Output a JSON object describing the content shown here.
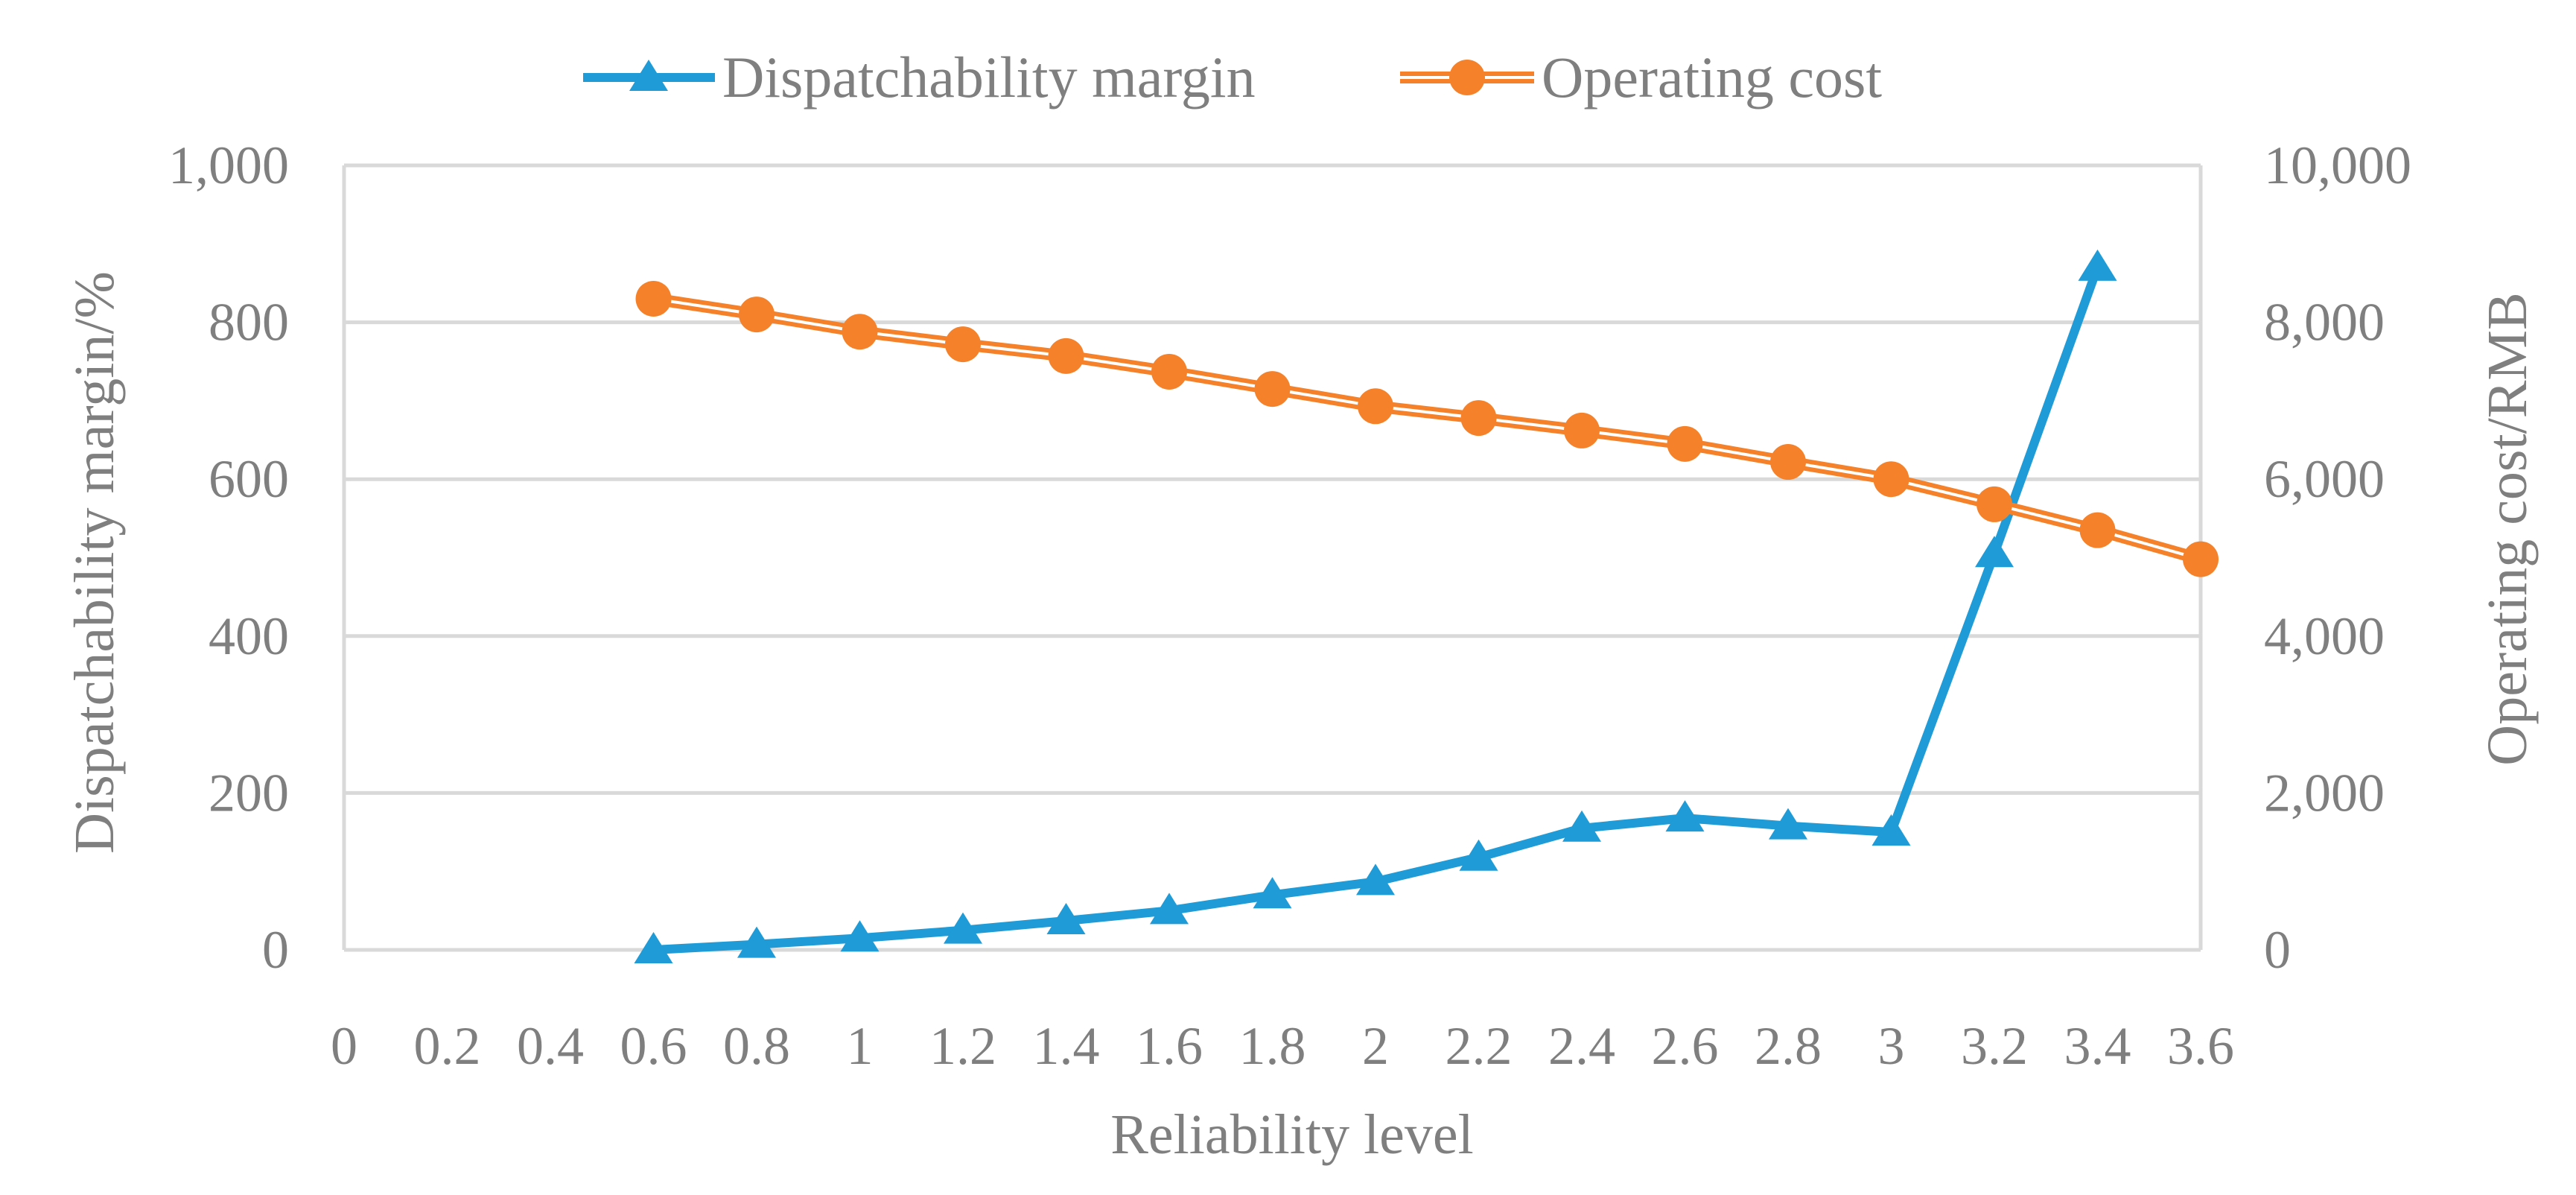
{
  "chart_data": {
    "type": "line",
    "title": "",
    "xlabel": "Reliability level",
    "ylabel_left": "Dispatchability margin/%",
    "ylabel_right": "Operating cost/RMB",
    "x_ticks": [
      "0",
      "0.2",
      "0.4",
      "0.6",
      "0.8",
      "1",
      "1.2",
      "1.4",
      "1.6",
      "1.8",
      "2",
      "2.2",
      "2.4",
      "2.6",
      "2.8",
      "3",
      "3.2",
      "3.4",
      "3.6"
    ],
    "xlim": [
      0,
      3.6
    ],
    "ylim_left": [
      0,
      1000
    ],
    "ylim_right": [
      0,
      10000
    ],
    "left_ticks": [
      0,
      200,
      400,
      600,
      800,
      1000
    ],
    "right_ticks": [
      0,
      2000,
      4000,
      6000,
      8000,
      10000
    ],
    "left_tick_labels": [
      "0",
      "200",
      "400",
      "600",
      "800",
      "1,000"
    ],
    "right_tick_labels": [
      "0",
      "2,000",
      "4,000",
      "6,000",
      "8,000",
      "10,000"
    ],
    "grid": true,
    "legend_position": "top-center",
    "series": [
      {
        "name": "Dispatchability margin",
        "axis": "left",
        "marker": "triangle",
        "color": "#1f9bd7",
        "x": [
          0.6,
          0.8,
          1.0,
          1.2,
          1.4,
          1.6,
          1.8,
          2.0,
          2.2,
          2.4,
          2.6,
          2.8,
          3.0,
          3.2,
          3.4
        ],
        "values": [
          0,
          7,
          15,
          25,
          37,
          50,
          70,
          87,
          118,
          155,
          168,
          158,
          150,
          505,
          870
        ]
      },
      {
        "name": "Operating cost",
        "axis": "right",
        "marker": "circle",
        "color": "#f5822a",
        "x": [
          0.6,
          0.8,
          1.0,
          1.2,
          1.4,
          1.6,
          1.8,
          2.0,
          2.2,
          2.4,
          2.6,
          2.8,
          3.0,
          3.2,
          3.4,
          3.6
        ],
        "values": [
          8300,
          8100,
          7880,
          7720,
          7570,
          7370,
          7150,
          6930,
          6780,
          6620,
          6450,
          6220,
          6000,
          5680,
          5350,
          4980
        ]
      }
    ]
  }
}
